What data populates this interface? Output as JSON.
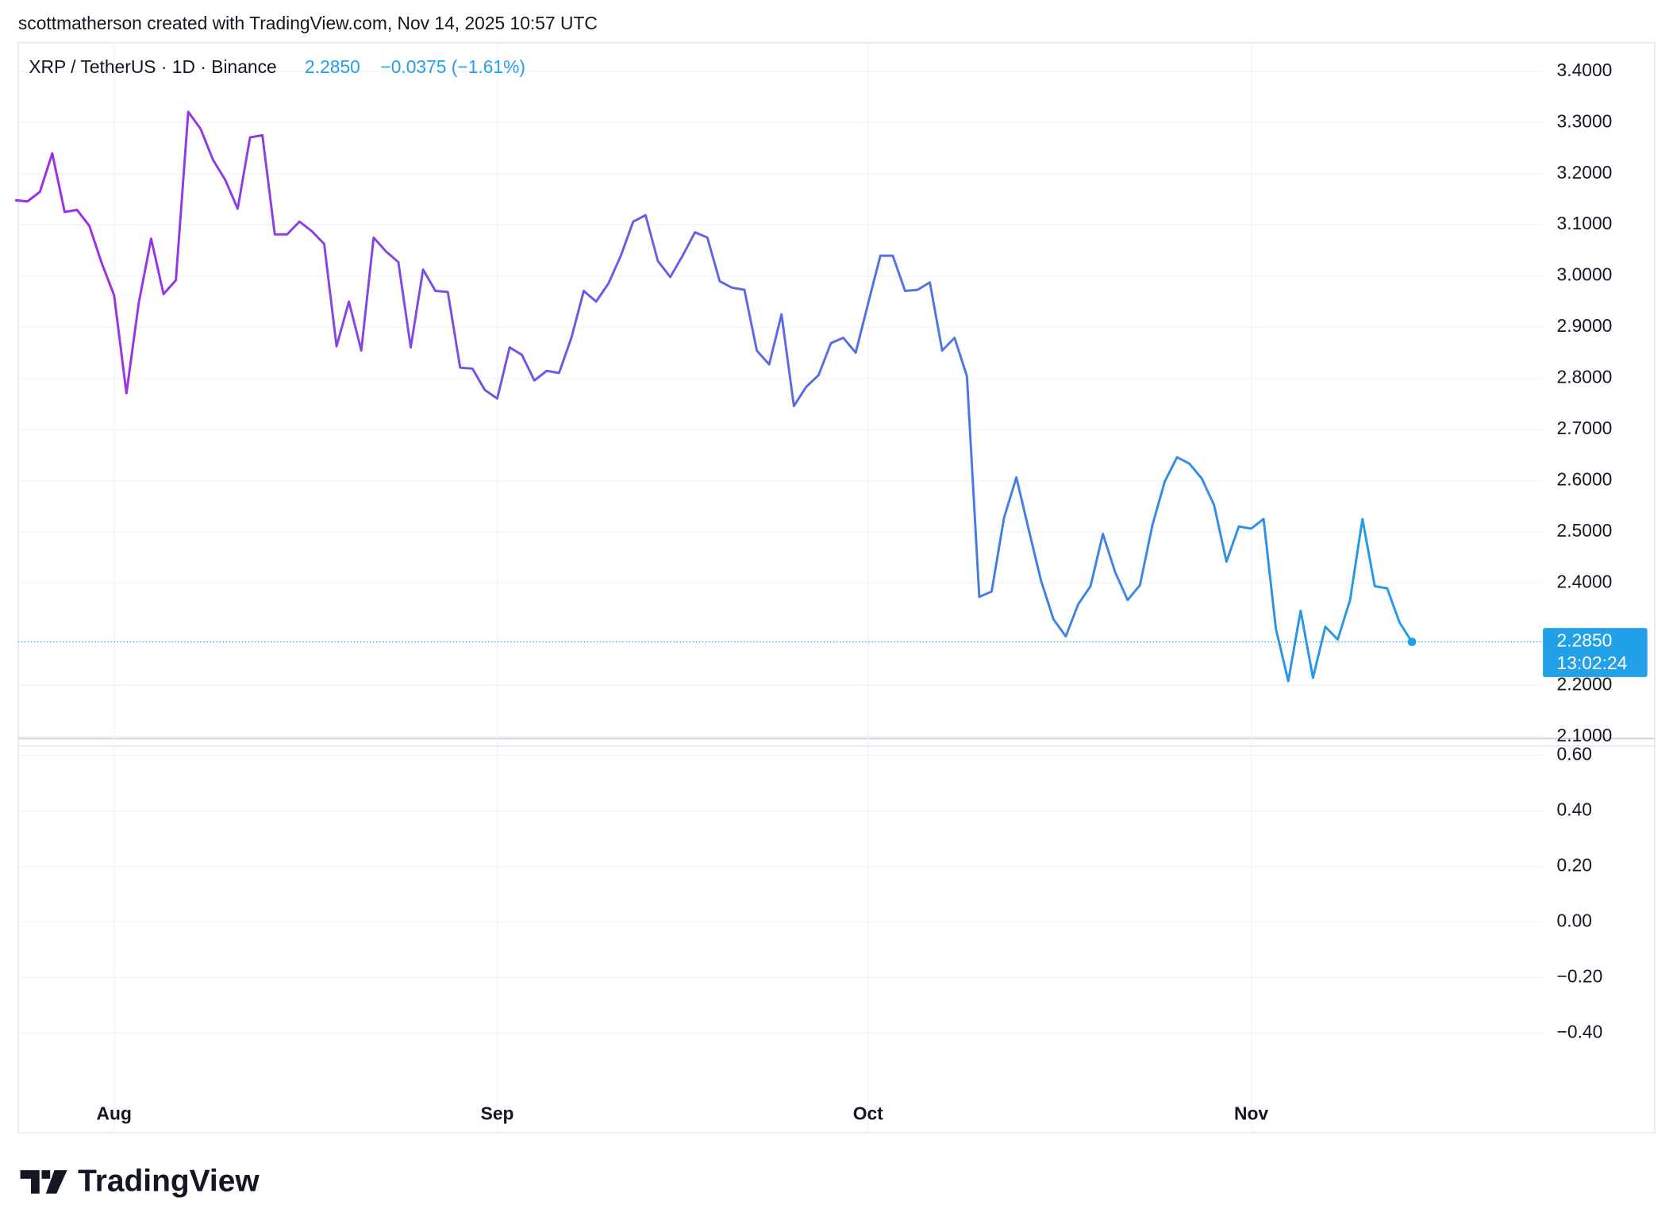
{
  "header": "scottmatherson created with TradingView.com, Nov 14, 2025 10:57 UTC",
  "logo": "TradingView",
  "chart_data": {
    "type": "line",
    "price": "2.2850",
    "change": "−0.0375 (−1.61%)",
    "price_tag": "2.2850",
    "countdown": "13:02:24",
    "tag_color": "#22a0e8",
    "categories": [
      null,
      null,
      null,
      null,
      null,
      null,
      null,
      null,
      "Aug",
      null,
      null,
      null,
      null,
      null,
      null,
      null,
      null,
      null,
      null,
      null,
      null,
      null,
      null,
      null,
      null,
      null,
      null,
      null,
      null,
      null,
      null,
      null,
      null,
      null,
      null,
      null,
      null,
      null,
      null,
      "Sep",
      null,
      null,
      null,
      null,
      null,
      null,
      null,
      null,
      null,
      null,
      null,
      null,
      null,
      null,
      null,
      null,
      null,
      null,
      null,
      null,
      null,
      null,
      null,
      null,
      null,
      null,
      null,
      null,
      null,
      "Oct",
      null,
      null,
      null,
      null,
      null,
      null,
      null,
      null,
      null,
      null,
      null,
      null,
      null,
      null,
      null,
      null,
      null,
      null,
      null,
      null,
      null,
      null,
      null,
      null,
      null,
      null,
      null,
      null,
      null,
      null,
      "Nov",
      null,
      null,
      null,
      null,
      null,
      null,
      null,
      null,
      null,
      null,
      null,
      null,
      null
    ],
    "series": [
      {
        "name": "XRP / TetherUS · 1D · Binance",
        "colors": [
          "#a429e6",
          "#1e9fe6"
        ],
        "values": [
          3.148,
          3.1458,
          3.1646,
          3.2396,
          3.125,
          3.1292,
          3.0979,
          3.025,
          2.9625,
          2.7708,
          2.9479,
          3.0729,
          2.9646,
          2.9917,
          3.3208,
          3.2875,
          3.2271,
          3.1875,
          3.1313,
          3.2708,
          3.275,
          3.0813,
          3.0813,
          3.1063,
          3.0875,
          3.0625,
          2.8625,
          2.95,
          2.8542,
          3.075,
          3.0479,
          3.0271,
          2.8604,
          3.0125,
          2.9708,
          2.9688,
          2.8208,
          2.8188,
          2.7771,
          2.7604,
          2.8604,
          2.8458,
          2.7958,
          2.8146,
          2.8104,
          2.8792,
          2.9708,
          2.95,
          2.9854,
          3.0396,
          3.1063,
          3.1188,
          3.0292,
          2.9979,
          3.0396,
          3.0854,
          3.075,
          2.9896,
          2.9771,
          2.9729,
          2.8542,
          2.8271,
          2.925,
          2.7458,
          2.7833,
          2.8063,
          2.8688,
          2.8792,
          2.85,
          2.9458,
          3.0396,
          3.0396,
          2.9708,
          2.9729,
          2.9875,
          2.8542,
          2.8792,
          2.8042,
          2.3729,
          2.3833,
          2.5271,
          2.6063,
          2.5042,
          2.4042,
          2.3292,
          2.2958,
          2.3583,
          2.3938,
          2.4958,
          2.4208,
          2.3667,
          2.3958,
          2.5125,
          2.5979,
          2.6458,
          2.6333,
          2.6042,
          2.5521,
          2.4417,
          2.5104,
          2.5063,
          2.525,
          2.3104,
          2.2083,
          2.3458,
          2.2146,
          2.3146,
          2.2896,
          2.3667,
          2.525,
          2.3938,
          2.3896,
          2.3229,
          2.285
        ]
      }
    ],
    "ylim": [
      2.096,
      3.456
    ],
    "yticks": [
      {
        "value": 2.1,
        "label": "2.1000"
      },
      {
        "value": 2.2,
        "label": "2.2000"
      },
      {
        "value": 2.4,
        "label": "2.4000"
      },
      {
        "value": 2.5,
        "label": "2.5000"
      },
      {
        "value": 2.6,
        "label": "2.6000"
      },
      {
        "value": 2.7,
        "label": "2.7000"
      },
      {
        "value": 2.8,
        "label": "2.8000"
      },
      {
        "value": 2.9,
        "label": "2.9000"
      },
      {
        "value": 3.0,
        "label": "3.0000"
      },
      {
        "value": 3.1,
        "label": "3.1000"
      },
      {
        "value": 3.2,
        "label": "3.2000"
      },
      {
        "value": 3.3,
        "label": "3.3000"
      },
      {
        "value": 3.4,
        "label": "3.4000"
      }
    ],
    "y2lim": [
      -0.614,
      0.634
    ],
    "y2ticks": [
      {
        "value": 0.6,
        "label": "0.60"
      },
      {
        "value": 0.4,
        "label": "0.40"
      },
      {
        "value": 0.2,
        "label": "0.20"
      },
      {
        "value": 0,
        "label": "0.00"
      },
      {
        "value": -0.2,
        "label": "−0.20"
      },
      {
        "value": -0.4,
        "label": "−0.40"
      }
    ],
    "grid": true
  }
}
